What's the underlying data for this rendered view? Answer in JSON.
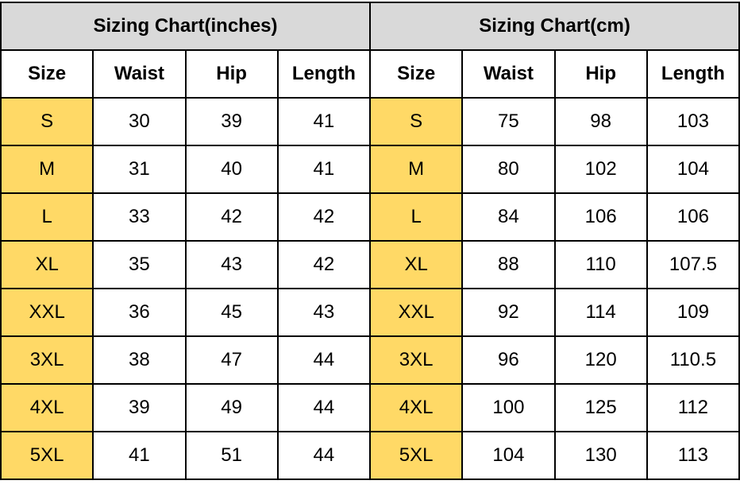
{
  "colors": {
    "title_bg": "#d9d9d9",
    "size_bg": "#ffd966",
    "border": "#000000"
  },
  "tables": [
    {
      "title": "Sizing Chart(inches)",
      "headers": [
        "Size",
        "Waist",
        "Hip",
        "Length"
      ],
      "rows": [
        [
          "S",
          "30",
          "39",
          "41"
        ],
        [
          "M",
          "31",
          "40",
          "41"
        ],
        [
          "L",
          "33",
          "42",
          "42"
        ],
        [
          "XL",
          "35",
          "43",
          "42"
        ],
        [
          "XXL",
          "36",
          "45",
          "43"
        ],
        [
          "3XL",
          "38",
          "47",
          "44"
        ],
        [
          "4XL",
          "39",
          "49",
          "44"
        ],
        [
          "5XL",
          "41",
          "51",
          "44"
        ]
      ]
    },
    {
      "title": "Sizing Chart(cm)",
      "headers": [
        "Size",
        "Waist",
        "Hip",
        "Length"
      ],
      "rows": [
        [
          "S",
          "75",
          "98",
          "103"
        ],
        [
          "M",
          "80",
          "102",
          "104"
        ],
        [
          "L",
          "84",
          "106",
          "106"
        ],
        [
          "XL",
          "88",
          "110",
          "107.5"
        ],
        [
          "XXL",
          "92",
          "114",
          "109"
        ],
        [
          "3XL",
          "96",
          "120",
          "110.5"
        ],
        [
          "4XL",
          "100",
          "125",
          "112"
        ],
        [
          "5XL",
          "104",
          "130",
          "113"
        ]
      ]
    }
  ]
}
